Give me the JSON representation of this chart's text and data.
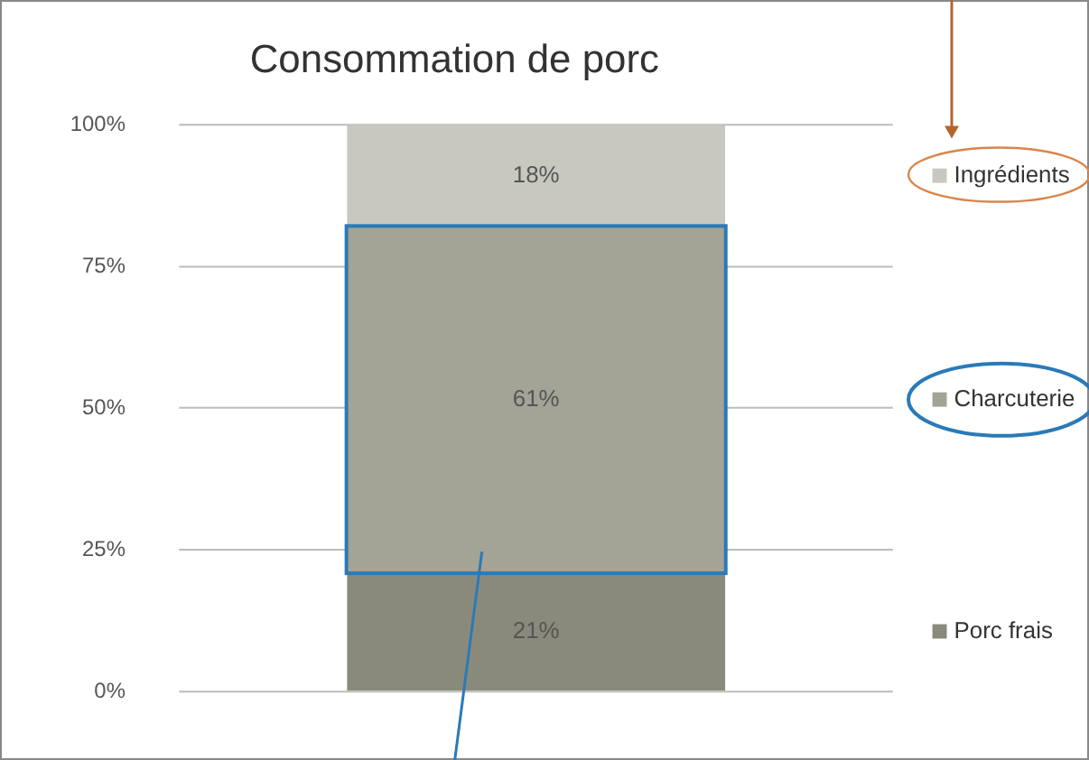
{
  "chart_data": {
    "type": "bar",
    "title": "Consommation de porc",
    "stacked": true,
    "categories": [
      null
    ],
    "series": [
      {
        "name": "Porc frais",
        "color": "#8a8a7c",
        "values": [
          21
        ],
        "value_labels": [
          "21%"
        ]
      },
      {
        "name": "Charcuterie",
        "color": "#a3a396",
        "values": [
          61
        ],
        "value_labels": [
          "61%"
        ]
      },
      {
        "name": "Ingrédients",
        "color": "#c8c8c0",
        "values": [
          18
        ],
        "value_labels": [
          "18%"
        ]
      }
    ],
    "ylim": [
      0,
      100
    ],
    "yticks": [
      {
        "value": 0,
        "label": "0%"
      },
      {
        "value": 25,
        "label": "25%"
      },
      {
        "value": 50,
        "label": "50%"
      },
      {
        "value": 75,
        "label": "75%"
      },
      {
        "value": 100,
        "label": "100%"
      }
    ],
    "grid": "y",
    "legend": "right"
  }
}
